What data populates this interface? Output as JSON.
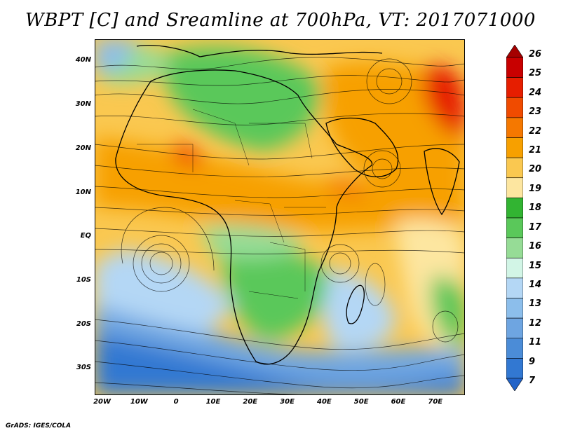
{
  "title": "WBPT [C] and Sreamline at 700hPa, VT: 2017071000",
  "credit": "GrADS: IGES/COLA",
  "map": {
    "lat_ticks": [
      "40N",
      "30N",
      "20N",
      "10N",
      "EQ",
      "10S",
      "20S",
      "30S"
    ],
    "lon_ticks": [
      "20W",
      "10W",
      "0",
      "10E",
      "20E",
      "30E",
      "40E",
      "50E",
      "60E",
      "70E"
    ],
    "extent": {
      "lon_min": -22,
      "lon_max": 78,
      "lat_min": -36,
      "lat_max": 45
    }
  },
  "colorbar": {
    "labels": [
      "26",
      "25",
      "24",
      "23",
      "22",
      "21",
      "20",
      "19",
      "18",
      "17",
      "16",
      "15",
      "14",
      "13",
      "12",
      "11",
      "9",
      "7"
    ],
    "colors": [
      "#a50000",
      "#c80000",
      "#e61e00",
      "#f04b00",
      "#f57800",
      "#f7a000",
      "#fac850",
      "#fde6a0",
      "#32b432",
      "#5ac85a",
      "#96dc96",
      "#d2f5e6",
      "#b4d7f5",
      "#8cbeeb",
      "#6ea5e1",
      "#4b8cd7",
      "#3278d2",
      "#2364c8"
    ]
  }
}
